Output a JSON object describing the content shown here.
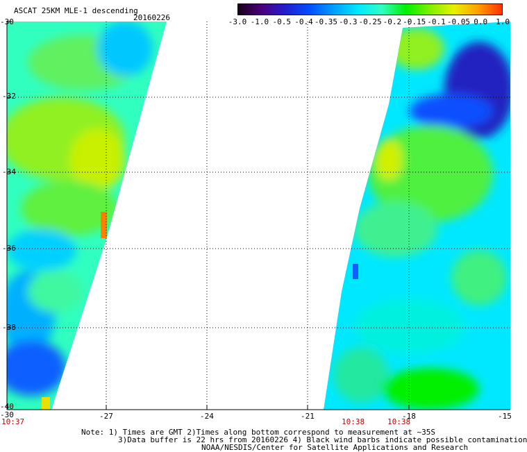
{
  "header": {
    "title": "ASCAT 25KM MLE-1 descending",
    "date": "20160226"
  },
  "colorbar": {
    "labels": [
      "-3.0",
      "-1.0",
      "-0.5",
      "-0.4",
      "-0.35",
      "-0.3",
      "-0.25",
      "-0.2",
      "-0.15",
      "-0.1",
      "-0.05",
      "0.0",
      "1.0"
    ],
    "colors": [
      "#180018",
      "#4a0080",
      "#2020d0",
      "#0050ff",
      "#00a0ff",
      "#00e8ff",
      "#30ffc0",
      "#00f000",
      "#80f000",
      "#e8f000",
      "#ffa000",
      "#ff3000"
    ]
  },
  "map": {
    "lat_labels": [
      "-30",
      "-32",
      "-34",
      "-36",
      "-38",
      "-40"
    ],
    "lon_labels": [
      "-30",
      "-27",
      "-24",
      "-21",
      "-18",
      "-15"
    ],
    "pass_times": [
      "10:37",
      "10:38",
      "10:38"
    ]
  },
  "notes": {
    "line1": "Note: 1) Times are GMT 2)Times along bottom correspond to measurement at ~35S",
    "line2": "3)Data buffer is 22 hrs from 20160226 4) Black wind barbs indicate possible contamination",
    "line3": "NOAA/NESDIS/Center for Satellite Applications and Research"
  }
}
